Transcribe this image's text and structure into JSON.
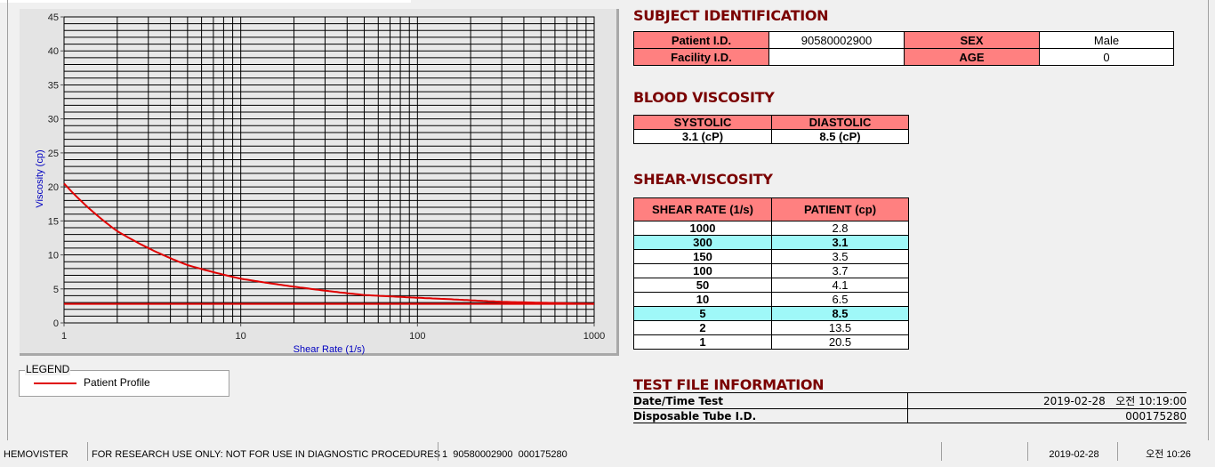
{
  "chart_data": {
    "type": "line",
    "xlabel": "Shear Rate (1/s)",
    "ylabel": "Viscosity (cp)",
    "xscale": "log",
    "xlim": [
      1,
      1000
    ],
    "ylim": [
      0,
      45
    ],
    "xticks": [
      "1",
      "10",
      "100",
      "1000"
    ],
    "yticks": [
      "0",
      "5",
      "10",
      "15",
      "20",
      "25",
      "30",
      "35",
      "40",
      "45"
    ],
    "grid": true,
    "series": [
      {
        "name": "Patient Profile",
        "color": "#e00000",
        "x": [
          1,
          2,
          5,
          10,
          50,
          100,
          150,
          300,
          1000
        ],
        "y": [
          20.5,
          13.5,
          8.5,
          6.5,
          4.1,
          3.7,
          3.5,
          3.1,
          2.8
        ]
      }
    ],
    "reference_line": {
      "y": 2.8,
      "color": "#e00000"
    },
    "legend_title": "LEGEND",
    "legend_placement": "bottom-left"
  },
  "subject": {
    "title": "SUBJECT IDENTIFICATION",
    "patient_id_label": "Patient I.D.",
    "patient_id": "90580002900",
    "sex_label": "SEX",
    "sex": "Male",
    "facility_label": "Facility I.D.",
    "facility": "",
    "age_label": "AGE",
    "age": "0"
  },
  "blood": {
    "title": "BLOOD VISCOSITY",
    "systolic_label": "SYSTOLIC",
    "diastolic_label": "DIASTOLIC",
    "systolic": "3.1 (cP)",
    "diastolic": "8.5 (cP)"
  },
  "shear": {
    "title": "SHEAR-VISCOSITY",
    "col1": "SHEAR RATE (1/s)",
    "col2": "PATIENT (cp)",
    "rows": [
      {
        "rate": "1000",
        "v": "2.8"
      },
      {
        "rate": "300",
        "v": "3.1",
        "hl": true
      },
      {
        "rate": "150",
        "v": "3.5"
      },
      {
        "rate": "100",
        "v": "3.7"
      },
      {
        "rate": "50",
        "v": "4.1"
      },
      {
        "rate": "10",
        "v": "6.5"
      },
      {
        "rate": "5",
        "v": "8.5",
        "hl": true
      },
      {
        "rate": "2",
        "v": "13.5"
      },
      {
        "rate": "1",
        "v": "20.5"
      }
    ]
  },
  "testfile": {
    "title": "TEST FILE INFORMATION",
    "date_label": "Date/Time Test",
    "date": "2019-02-28   오전 10:19:00",
    "tube_label": "Disposable Tube I.D.",
    "tube": "000175280"
  },
  "status": {
    "app": "HEMOVISTER",
    "notice": "FOR RESEARCH USE ONLY: NOT FOR USE IN DIAGNOSTIC PROCEDURES",
    "record": "1  90580002900  000175280",
    "blank": "",
    "date": "2019-02-28",
    "time": "오전 10:26"
  },
  "colors": {
    "header_pink": "#ff8080",
    "highlight_cyan": "#9ff8f8",
    "title_red": "#7a0000",
    "axis_label_blue": "#0000c0"
  }
}
